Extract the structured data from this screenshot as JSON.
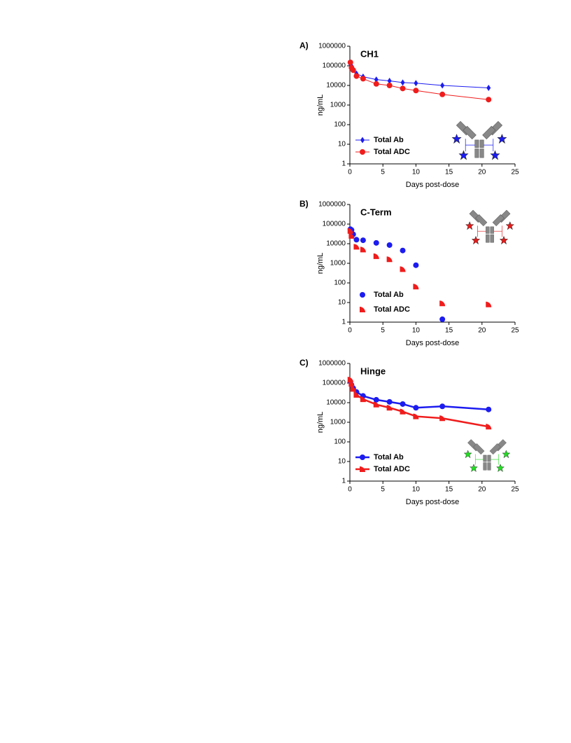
{
  "chart_data": [
    {
      "type": "line",
      "panel_label": "A)",
      "title": "CH1",
      "ylabel": "ng/mL",
      "xlabel": "Days post-dose",
      "log_y": true,
      "legend": "lower left",
      "xlim": [
        0,
        25
      ],
      "xticks": [
        0,
        5,
        10,
        15,
        20,
        25
      ],
      "ylim": [
        1,
        1000000
      ],
      "yticks": [
        1,
        10,
        100,
        1000,
        10000,
        100000,
        1000000
      ],
      "series": [
        {
          "name": "Total Ab",
          "color": "#1c1cf0",
          "marker": "diamond",
          "x": [
            0.08,
            0.25,
            0.5,
            1,
            2,
            4,
            6,
            8,
            10,
            14,
            21
          ],
          "values": [
            120000,
            100000,
            70000,
            40000,
            28000,
            20000,
            17000,
            14000,
            13000,
            10000,
            7500
          ]
        },
        {
          "name": "Total ADC",
          "color": "#f01c1c",
          "marker": "circle",
          "x": [
            0.08,
            0.25,
            0.5,
            1,
            2,
            4,
            6,
            8,
            10,
            14,
            21
          ],
          "values": [
            150000,
            80000,
            60000,
            30000,
            22000,
            12000,
            10000,
            7000,
            5500,
            3500,
            1900
          ]
        }
      ]
    },
    {
      "type": "scatter",
      "panel_label": "B)",
      "title": "C-Term",
      "ylabel": "ng/mL",
      "xlabel": "Days post-dose",
      "log_y": true,
      "legend": "lower left",
      "xlim": [
        0,
        25
      ],
      "xticks": [
        0,
        5,
        10,
        15,
        20,
        25
      ],
      "ylim": [
        1,
        1000000
      ],
      "yticks": [
        1,
        10,
        100,
        1000,
        10000,
        100000,
        1000000
      ],
      "series": [
        {
          "name": "Total Ab",
          "color": "#1c1cf0",
          "marker": "circle",
          "x": [
            0.08,
            0.25,
            0.5,
            1,
            2,
            4,
            6,
            8,
            10,
            14
          ],
          "values": [
            55000,
            50000,
            30000,
            16000,
            15000,
            11000,
            8500,
            4500,
            800,
            1.4
          ]
        },
        {
          "name": "Total ADC",
          "color": "#f01c1c",
          "marker": "wedge",
          "x": [
            0.08,
            0.25,
            1,
            2,
            4,
            6,
            8,
            10,
            14,
            21
          ],
          "values": [
            45000,
            25000,
            7000,
            5000,
            2300,
            1600,
            500,
            65,
            9,
            8
          ]
        }
      ]
    },
    {
      "type": "line",
      "panel_label": "C)",
      "title": "Hinge",
      "ylabel": "ng/mL",
      "xlabel": "Days post-dose",
      "log_y": true,
      "legend": "lower left",
      "xlim": [
        0,
        25
      ],
      "xticks": [
        0,
        5,
        10,
        15,
        20,
        25
      ],
      "ylim": [
        1,
        1000000
      ],
      "yticks": [
        1,
        10,
        100,
        1000,
        10000,
        100000,
        1000000
      ],
      "series": [
        {
          "name": "Total Ab",
          "color": "#1c1cf0",
          "marker": "circle",
          "x": [
            0.08,
            0.25,
            0.5,
            1,
            2,
            4,
            6,
            8,
            10,
            14,
            21
          ],
          "values": [
            120000,
            80000,
            55000,
            35000,
            22000,
            14000,
            11000,
            8500,
            5500,
            6500,
            4500
          ]
        },
        {
          "name": "Total ADC",
          "color": "#f01c1c",
          "marker": "wedge",
          "x": [
            0.08,
            0.25,
            0.5,
            1,
            2,
            4,
            6,
            8,
            10,
            14,
            21
          ],
          "values": [
            150000,
            90000,
            50000,
            25000,
            15000,
            8000,
            5500,
            3500,
            2000,
            1600,
            600
          ]
        }
      ]
    }
  ]
}
